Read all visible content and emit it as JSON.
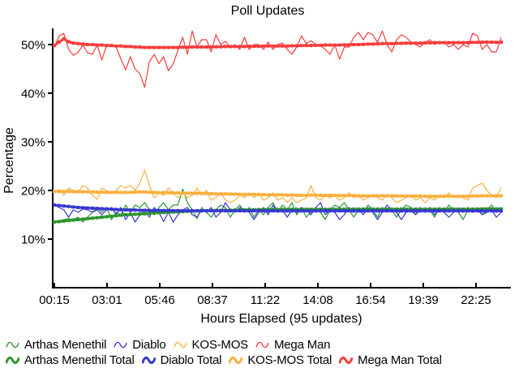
{
  "title": "Poll Updates",
  "y_axis": {
    "label": "Percentage",
    "ticks": [
      "10%",
      "20%",
      "30%",
      "40%",
      "50%"
    ],
    "tick_values": [
      10,
      20,
      30,
      40,
      50
    ]
  },
  "x_axis": {
    "label": "Hours Elapsed (95 updates)",
    "ticks": [
      "00:15",
      "03:01",
      "05:46",
      "08:37",
      "11:22",
      "14:08",
      "16:54",
      "19:39",
      "22:25"
    ]
  },
  "chart_data": {
    "type": "line",
    "title": "Poll Updates",
    "xlabel": "Hours Elapsed (95 updates)",
    "ylabel": "Percentage",
    "ylim": [
      0,
      53.3
    ],
    "grid": false,
    "legend_position": "bottom",
    "n_updates": 95,
    "x_tick_labels": [
      "00:15",
      "03:01",
      "05:46",
      "08:37",
      "11:22",
      "14:08",
      "16:54",
      "19:39",
      "22:25"
    ],
    "series": [
      {
        "name": "Arthas Menethil",
        "color": "#2d962d",
        "style": "thin",
        "values": [
          13.5,
          13.8,
          14,
          14.2,
          14,
          14.5,
          13.5,
          14.5,
          15.5,
          16.5,
          15.5,
          16.5,
          14,
          15.5,
          15,
          17,
          15.5,
          17,
          16.5,
          17.5,
          16,
          15,
          16.5,
          17.5,
          16,
          17,
          17,
          20.3,
          17.5,
          16,
          14.2,
          16.5,
          15.5,
          14.5,
          16,
          17,
          16.5,
          14.5,
          16,
          17,
          15.5,
          16.5,
          14.5,
          16,
          15,
          16.5,
          17.5,
          15.5,
          17,
          16,
          17.5,
          15,
          16.5,
          14.5,
          15.5,
          16.5,
          15.5,
          14,
          16,
          17,
          16.5,
          17.5,
          16,
          14.5,
          16,
          15.5,
          17,
          16,
          14.5,
          16.5,
          15.5,
          16,
          14.5,
          16,
          17,
          16.5,
          15,
          16.5,
          15.5,
          16,
          14.5,
          16.5,
          15.5,
          17,
          16,
          15.5,
          14,
          16,
          15.5,
          16.5,
          15,
          16,
          17,
          15.5,
          16
        ]
      },
      {
        "name": "Diablo",
        "color": "#3737d2",
        "style": "thin",
        "values": [
          17,
          16.5,
          16,
          14.5,
          16,
          15.5,
          16.2,
          16,
          15.5,
          16,
          15,
          16,
          16.5,
          15,
          16.5,
          14,
          15.5,
          13.5,
          15,
          16,
          14.5,
          16.5,
          15.5,
          13.6,
          15.5,
          13.5,
          15,
          16,
          16.5,
          15,
          14.5,
          16,
          15.5,
          16.5,
          14.5,
          15.5,
          17.5,
          16,
          15.5,
          16.5,
          16,
          15.5,
          14,
          15.5,
          16.5,
          15,
          17,
          15.5,
          16,
          14.5,
          16,
          15.5,
          16.5,
          16,
          15,
          16.5,
          17.5,
          15,
          16,
          15.5,
          14,
          15,
          16.5,
          15.5,
          16,
          15,
          16.5,
          15.5,
          14,
          15.5,
          17,
          16,
          15.5,
          14,
          15.5,
          16,
          15,
          16,
          15.5,
          16.5,
          15,
          16,
          15.5,
          14.5,
          15.5,
          16,
          15.5,
          16.5,
          15.5,
          16,
          15,
          15.5,
          16,
          14.5,
          15.5
        ]
      },
      {
        "name": "KOS-MOS",
        "color": "#fbaf3c",
        "style": "thin",
        "values": [
          19.5,
          20.2,
          19,
          20.5,
          20,
          19.5,
          21,
          20.5,
          19,
          18.2,
          20.5,
          20,
          19.5,
          20,
          21,
          20.5,
          21,
          20,
          21.5,
          24.2,
          21,
          18.5,
          19.5,
          19,
          20.5,
          19.5,
          18.5,
          19.5,
          18.5,
          19,
          20.5,
          19,
          20,
          18,
          18.5,
          19.5,
          18,
          17.5,
          18,
          19,
          18.5,
          19.5,
          18.5,
          19.5,
          18,
          18.5,
          19.5,
          18,
          18.5,
          17.5,
          18.5,
          17.5,
          18,
          18.5,
          21,
          18.5,
          18,
          19,
          18.5,
          19,
          18,
          18.5,
          19.5,
          18.5,
          19,
          18,
          18.5,
          19,
          18.5,
          18,
          19,
          18.5,
          17.5,
          18,
          18.5,
          19,
          18,
          18.5,
          17.5,
          18.5,
          18,
          19,
          18.5,
          19.5,
          18.5,
          19,
          18.5,
          18,
          20.5,
          21,
          21.5,
          20,
          19,
          18.5,
          20.5
        ]
      },
      {
        "name": "Mega Man",
        "color": "#fa3c3c",
        "style": "thin",
        "values": [
          49.5,
          51.8,
          52.3,
          49,
          47.8,
          48.4,
          49.9,
          48.3,
          48,
          49.9,
          46.8,
          49.9,
          50,
          49.5,
          47,
          44.8,
          47.5,
          45,
          44,
          41.2,
          46.5,
          48,
          46.1,
          47.5,
          44.6,
          46,
          48.8,
          51.5,
          48,
          52.8,
          49.5,
          51,
          51,
          48.5,
          52,
          50,
          50.7,
          49.3,
          50,
          49,
          51.5,
          49,
          50,
          50,
          49,
          50.5,
          49,
          50,
          50.3,
          49,
          48,
          49.5,
          51.8,
          50.2,
          50.8,
          50,
          49.8,
          49,
          48,
          50,
          47,
          49.5,
          49.5,
          51.5,
          52.5,
          51,
          52.5,
          52,
          50.5,
          52.8,
          50,
          48.5,
          51,
          52,
          51.5,
          50.5,
          50,
          49.5,
          50.5,
          51,
          50,
          50.5,
          50.5,
          49.5,
          50,
          49,
          50,
          49.5,
          52.3,
          51.8,
          49,
          50,
          48.5,
          48.5,
          51.5
        ]
      },
      {
        "name": "Arthas Menethil Total",
        "color": "#2d962d",
        "style": "thick",
        "values": [
          13.5,
          13.6,
          13.7,
          13.8,
          13.9,
          14,
          14.1,
          14.2,
          14.3,
          14.4,
          14.5,
          14.6,
          14.7,
          14.8,
          14.9,
          15,
          15.05,
          15.1,
          15.15,
          15.2,
          15.3,
          15.35,
          15.4,
          15.45,
          15.5,
          15.55,
          15.6,
          15.65,
          15.7,
          15.75,
          15.8,
          15.82,
          15.84,
          15.86,
          15.88,
          15.9,
          15.92,
          15.94,
          15.96,
          15.98,
          16,
          16.02,
          16.04,
          16.06,
          16.08,
          16.1,
          16.1,
          16.1,
          16.1,
          16.1,
          16.12,
          16.12,
          16.12,
          16.12,
          16.12,
          16.12,
          16.12,
          16.12,
          16.12,
          16.12,
          16.15,
          16.15,
          16.15,
          16.15,
          16.15,
          16.15,
          16.15,
          16.15,
          16.15,
          16.15,
          16.15,
          16.15,
          16.15,
          16.15,
          16.15,
          16.15,
          16.15,
          16.15,
          16.15,
          16.15,
          16.15,
          16.15,
          16.15,
          16.15,
          16.15,
          16.15,
          16.15,
          16.15,
          16.15,
          16.15,
          16.2,
          16.2,
          16.2,
          16.2,
          16.2
        ]
      },
      {
        "name": "Diablo Total",
        "color": "#3737d2",
        "style": "thick",
        "values": [
          17,
          16.9,
          16.8,
          16.7,
          16.6,
          16.5,
          16.45,
          16.4,
          16.35,
          16.3,
          16.25,
          16.2,
          16.15,
          16.1,
          16.05,
          16,
          15.98,
          15.96,
          15.94,
          15.92,
          15.9,
          15.89,
          15.88,
          15.87,
          15.86,
          15.85,
          15.85,
          15.84,
          15.84,
          15.83,
          15.82,
          15.82,
          15.82,
          15.82,
          15.82,
          15.82,
          15.82,
          15.82,
          15.82,
          15.82,
          15.82,
          15.82,
          15.82,
          15.82,
          15.82,
          15.8,
          15.8,
          15.8,
          15.8,
          15.8,
          15.8,
          15.8,
          15.8,
          15.8,
          15.8,
          15.8,
          15.8,
          15.8,
          15.8,
          15.8,
          15.8,
          15.8,
          15.8,
          15.8,
          15.8,
          15.8,
          15.8,
          15.8,
          15.8,
          15.8,
          15.8,
          15.8,
          15.8,
          15.8,
          15.8,
          15.8,
          15.8,
          15.8,
          15.8,
          15.8,
          15.8,
          15.8,
          15.8,
          15.8,
          15.8,
          15.8,
          15.8,
          15.8,
          15.8,
          15.8,
          15.8,
          15.8,
          15.8,
          15.8,
          15.8
        ]
      },
      {
        "name": "KOS-MOS Total",
        "color": "#fbaf3c",
        "style": "thick",
        "values": [
          19.8,
          19.8,
          19.8,
          19.8,
          19.75,
          19.75,
          19.7,
          19.7,
          19.7,
          19.65,
          19.65,
          19.6,
          19.6,
          19.6,
          19.6,
          19.6,
          19.6,
          19.65,
          19.7,
          19.7,
          19.6,
          19.6,
          19.55,
          19.55,
          19.5,
          19.5,
          19.5,
          19.45,
          19.45,
          19.4,
          19.4,
          19.4,
          19.35,
          19.35,
          19.3,
          19.3,
          19.3,
          19.25,
          19.25,
          19.2,
          19.2,
          19.2,
          19.2,
          19.15,
          19.15,
          19.1,
          19.1,
          19.1,
          19.1,
          19.05,
          19.05,
          19,
          19,
          19,
          19.05,
          19.05,
          19,
          19,
          19,
          19,
          18.95,
          18.95,
          18.95,
          18.95,
          18.9,
          18.9,
          18.9,
          18.9,
          18.9,
          18.9,
          18.9,
          18.9,
          18.85,
          18.85,
          18.85,
          18.85,
          18.85,
          18.85,
          18.8,
          18.8,
          18.8,
          18.8,
          18.8,
          18.8,
          18.8,
          18.8,
          18.8,
          18.8,
          18.85,
          18.85,
          18.9,
          18.9,
          18.9,
          18.9,
          18.9
        ]
      },
      {
        "name": "Mega Man Total",
        "color": "#fa3c3c",
        "style": "thick",
        "values": [
          49.8,
          50.5,
          51.2,
          50.6,
          50.3,
          50.2,
          50.1,
          50,
          50,
          49.9,
          49.9,
          49.8,
          49.8,
          49.7,
          49.7,
          49.6,
          49.6,
          49.5,
          49.5,
          49.4,
          49.4,
          49.4,
          49.4,
          49.4,
          49.4,
          49.4,
          49.4,
          49.45,
          49.45,
          49.5,
          49.5,
          49.5,
          49.5,
          49.5,
          49.55,
          49.55,
          49.6,
          49.6,
          49.6,
          49.6,
          49.6,
          49.65,
          49.65,
          49.65,
          49.7,
          49.7,
          49.7,
          49.7,
          49.7,
          49.7,
          49.75,
          49.75,
          49.8,
          49.8,
          49.8,
          49.85,
          49.85,
          49.9,
          49.9,
          49.9,
          49.9,
          49.95,
          49.95,
          50,
          50,
          50.05,
          50.1,
          50.1,
          50.15,
          50.2,
          50.2,
          50.2,
          50.25,
          50.25,
          50.3,
          50.3,
          50.3,
          50.3,
          50.35,
          50.35,
          50.4,
          50.4,
          50.4,
          50.4,
          50.4,
          50.4,
          50.4,
          50.4,
          50.45,
          50.45,
          50.5,
          50.5,
          50.5,
          50.45,
          50.5
        ]
      }
    ],
    "legend_rows": [
      [
        "Arthas Menethil",
        "Diablo",
        "KOS-MOS",
        "Mega Man"
      ],
      [
        "Arthas Menethil Total",
        "Diablo Total",
        "KOS-MOS Total",
        "Mega Man Total"
      ]
    ]
  }
}
